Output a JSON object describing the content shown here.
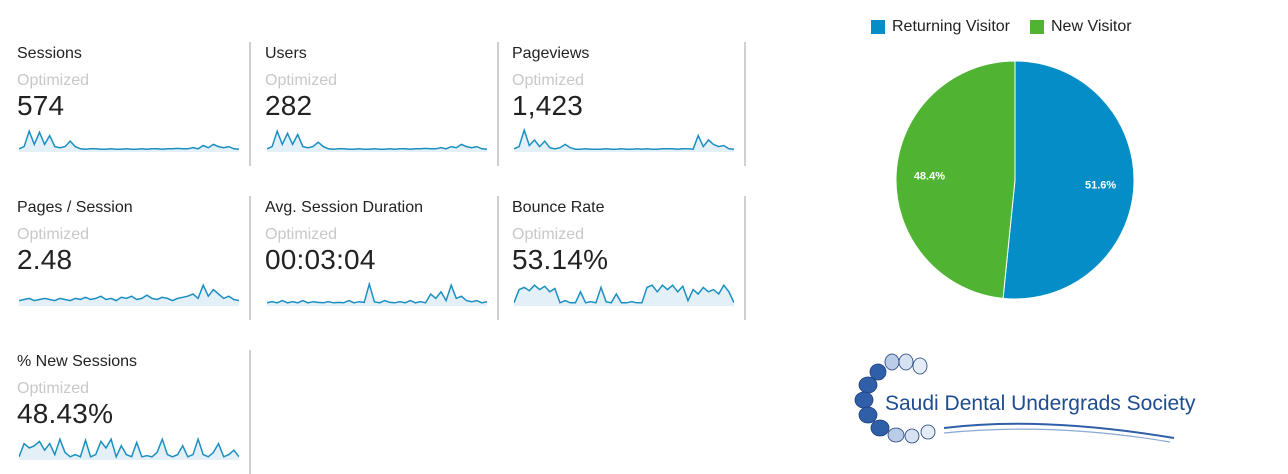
{
  "metrics": [
    {
      "name": "Sessions",
      "sub": "Optimized",
      "value": "574",
      "spark": [
        0.1,
        0.2,
        0.9,
        0.3,
        0.85,
        0.3,
        0.7,
        0.2,
        0.15,
        0.2,
        0.45,
        0.2,
        0.1,
        0.08,
        0.1,
        0.1,
        0.08,
        0.08,
        0.1,
        0.08,
        0.08,
        0.1,
        0.08,
        0.08,
        0.1,
        0.08,
        0.1,
        0.1,
        0.08,
        0.1,
        0.1,
        0.12,
        0.1,
        0.1,
        0.15,
        0.1,
        0.25,
        0.15,
        0.3,
        0.2,
        0.15,
        0.2,
        0.1,
        0.08
      ]
    },
    {
      "name": "Users",
      "sub": "Optimized",
      "value": "282",
      "spark": [
        0.1,
        0.2,
        0.9,
        0.3,
        0.8,
        0.3,
        0.75,
        0.2,
        0.15,
        0.2,
        0.4,
        0.2,
        0.1,
        0.08,
        0.1,
        0.1,
        0.08,
        0.08,
        0.1,
        0.08,
        0.08,
        0.1,
        0.08,
        0.08,
        0.1,
        0.08,
        0.1,
        0.1,
        0.08,
        0.1,
        0.1,
        0.12,
        0.1,
        0.1,
        0.15,
        0.1,
        0.2,
        0.15,
        0.3,
        0.2,
        0.15,
        0.2,
        0.1,
        0.08
      ]
    },
    {
      "name": "Pageviews",
      "sub": "Optimized",
      "value": "1,423",
      "spark": [
        0.1,
        0.2,
        0.95,
        0.25,
        0.5,
        0.2,
        0.45,
        0.15,
        0.1,
        0.15,
        0.3,
        0.15,
        0.08,
        0.08,
        0.1,
        0.08,
        0.08,
        0.08,
        0.1,
        0.08,
        0.08,
        0.1,
        0.08,
        0.08,
        0.1,
        0.08,
        0.1,
        0.08,
        0.08,
        0.1,
        0.1,
        0.1,
        0.08,
        0.1,
        0.1,
        0.08,
        0.7,
        0.2,
        0.5,
        0.3,
        0.2,
        0.25,
        0.1,
        0.08
      ]
    },
    {
      "name": "Pages / Session",
      "sub": "Optimized",
      "value": "2.48",
      "spark": [
        0.2,
        0.25,
        0.3,
        0.2,
        0.25,
        0.3,
        0.25,
        0.2,
        0.3,
        0.25,
        0.2,
        0.3,
        0.25,
        0.35,
        0.25,
        0.3,
        0.4,
        0.25,
        0.3,
        0.2,
        0.35,
        0.3,
        0.4,
        0.25,
        0.3,
        0.45,
        0.3,
        0.25,
        0.35,
        0.3,
        0.2,
        0.3,
        0.35,
        0.4,
        0.5,
        0.3,
        0.9,
        0.4,
        0.7,
        0.5,
        0.3,
        0.4,
        0.25,
        0.2
      ]
    },
    {
      "name": "Avg. Session Duration",
      "sub": "Optimized",
      "value": "00:03:04",
      "spark": [
        0.1,
        0.15,
        0.1,
        0.2,
        0.1,
        0.15,
        0.1,
        0.2,
        0.1,
        0.15,
        0.12,
        0.1,
        0.15,
        0.1,
        0.12,
        0.1,
        0.2,
        0.1,
        0.15,
        0.12,
        0.95,
        0.15,
        0.1,
        0.2,
        0.12,
        0.1,
        0.15,
        0.1,
        0.2,
        0.1,
        0.15,
        0.1,
        0.5,
        0.3,
        0.6,
        0.2,
        0.9,
        0.3,
        0.4,
        0.2,
        0.15,
        0.2,
        0.1,
        0.15
      ]
    },
    {
      "name": "Bounce Rate",
      "sub": "Optimized",
      "value": "53.14%",
      "spark": [
        0.1,
        0.7,
        0.8,
        0.65,
        0.9,
        0.7,
        0.85,
        0.6,
        0.75,
        0.1,
        0.2,
        0.1,
        0.1,
        0.6,
        0.1,
        0.15,
        0.1,
        0.8,
        0.15,
        0.1,
        0.5,
        0.1,
        0.1,
        0.15,
        0.1,
        0.1,
        0.8,
        0.9,
        0.6,
        0.9,
        0.7,
        0.9,
        0.6,
        0.85,
        0.2,
        0.7,
        0.5,
        0.8,
        0.6,
        0.7,
        0.5,
        0.9,
        0.6,
        0.1
      ]
    },
    {
      "name": "% New Sessions",
      "sub": "Optimized",
      "value": "48.43%",
      "spark": [
        0.1,
        0.7,
        0.5,
        0.6,
        0.8,
        0.4,
        0.7,
        0.2,
        0.9,
        0.3,
        0.1,
        0.2,
        0.1,
        0.85,
        0.1,
        0.2,
        0.8,
        0.5,
        0.9,
        0.1,
        0.6,
        0.2,
        0.1,
        0.75,
        0.1,
        0.15,
        0.1,
        0.3,
        0.9,
        0.2,
        0.1,
        0.2,
        0.6,
        0.1,
        0.2,
        0.9,
        0.2,
        0.1,
        0.3,
        0.7,
        0.1,
        0.2,
        0.4,
        0.1
      ]
    }
  ],
  "legend": [
    {
      "label": "Returning Visitor",
      "color": "#058dc7"
    },
    {
      "label": "New Visitor",
      "color": "#50b432"
    }
  ],
  "chart_data": {
    "type": "pie",
    "series": [
      {
        "name": "Returning Visitor",
        "value": 51.6,
        "label": "51.6%",
        "color": "#058dc7"
      },
      {
        "name": "New Visitor",
        "value": 48.4,
        "label": "48.4%",
        "color": "#50b432"
      }
    ]
  },
  "logo": {
    "text": "Saudi Dental Undergrads Society"
  },
  "colors": {
    "spark_line": "#1b8fc0",
    "spark_fill": "#e3f0f8",
    "subtext": "#c8c8c8"
  }
}
